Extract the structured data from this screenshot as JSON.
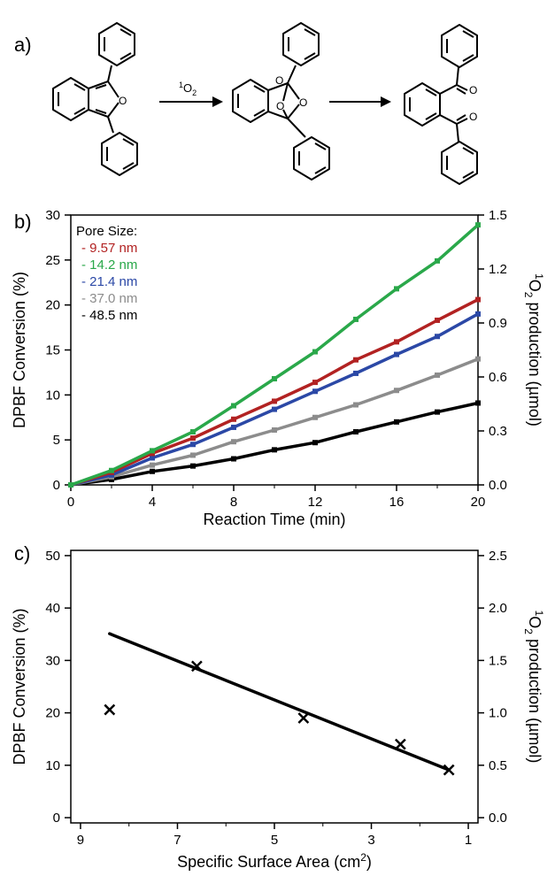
{
  "panels": {
    "a": "a)",
    "b": "b)",
    "c": "c)"
  },
  "scheme": {
    "reagent": "1O2",
    "reagent_sup": "1",
    "reagent_main": "O",
    "reagent_sub": "2",
    "ring_oxygen": "O",
    "carbonyl_oxygen": "O"
  },
  "chart_data": [
    {
      "type": "line",
      "panel": "b)",
      "xlabel": "Reaction Time (min)",
      "ylabel": "DPBF Conversion (%)",
      "ylabel2": "1O2 production (µmol)",
      "ylabel2_parts": {
        "sup": "1",
        "main1": "O",
        "sub": "2",
        "main2": " production (µmol)"
      },
      "xlim": [
        0,
        20
      ],
      "ylim": [
        0,
        30
      ],
      "y2lim": [
        0,
        1.5
      ],
      "x_ticks": [
        "0",
        "4",
        "8",
        "12",
        "16",
        "20"
      ],
      "y_ticks": [
        "0",
        "5",
        "10",
        "15",
        "20",
        "25",
        "30"
      ],
      "y2_ticks": [
        "0.0",
        "0.3",
        "0.6",
        "0.9",
        "1.2",
        "1.5"
      ],
      "legend_title": "Pore Size:",
      "legend_position": "top-left",
      "x": [
        0,
        2,
        4,
        6,
        8,
        10,
        12,
        14,
        16,
        18,
        20
      ],
      "series": [
        {
          "name": "9.57 nm",
          "color": "#b22222",
          "values": [
            0,
            1.4,
            3.5,
            5.2,
            7.3,
            9.3,
            11.4,
            13.9,
            15.9,
            18.3,
            20.6
          ]
        },
        {
          "name": "14.2 nm",
          "color": "#2aa84a",
          "values": [
            0,
            1.6,
            3.8,
            5.9,
            8.8,
            11.8,
            14.8,
            18.4,
            21.8,
            24.9,
            28.9
          ]
        },
        {
          "name": "21.4 nm",
          "color": "#2b48a6",
          "values": [
            0,
            1.1,
            3.0,
            4.5,
            6.4,
            8.4,
            10.4,
            12.4,
            14.5,
            16.5,
            19.0
          ]
        },
        {
          "name": "37.0 nm",
          "color": "#8c8c8c",
          "values": [
            0,
            0.9,
            2.2,
            3.3,
            4.8,
            6.1,
            7.5,
            8.9,
            10.5,
            12.2,
            14.0
          ]
        },
        {
          "name": "48.5 nm",
          "color": "#000000",
          "values": [
            0,
            0.6,
            1.5,
            2.1,
            2.9,
            3.9,
            4.7,
            5.9,
            7.0,
            8.1,
            9.1
          ]
        }
      ]
    },
    {
      "type": "scatter",
      "panel": "c)",
      "xlabel": "Specific Surface Area (cm2)",
      "xlabel_parts": {
        "main": "Specific Surface Area (cm",
        "sup": "2",
        "end": ")"
      },
      "ylabel": "DPBF Conversion (%)",
      "ylabel2": "1O2 production (µmol)",
      "xlim": [
        9.2,
        0.8
      ],
      "x_reversed": true,
      "ylim": [
        -1,
        51
      ],
      "y2lim": [
        -0.05,
        2.55
      ],
      "x_ticks": [
        "9",
        "7",
        "5",
        "3",
        "1"
      ],
      "y_ticks": [
        "0",
        "10",
        "20",
        "30",
        "40",
        "50"
      ],
      "y2_ticks": [
        "0.0",
        "0.5",
        "1.0",
        "1.5",
        "2.0",
        "2.5"
      ],
      "marker": "x",
      "points": [
        {
          "x": 8.4,
          "y": 20.6
        },
        {
          "x": 6.6,
          "y": 28.9
        },
        {
          "x": 4.4,
          "y": 19.0
        },
        {
          "x": 2.4,
          "y": 14.0
        },
        {
          "x": 1.4,
          "y": 9.1
        }
      ],
      "fit_line": {
        "x": [
          8.4,
          1.4
        ],
        "y": [
          35.1,
          9.1
        ]
      }
    }
  ]
}
